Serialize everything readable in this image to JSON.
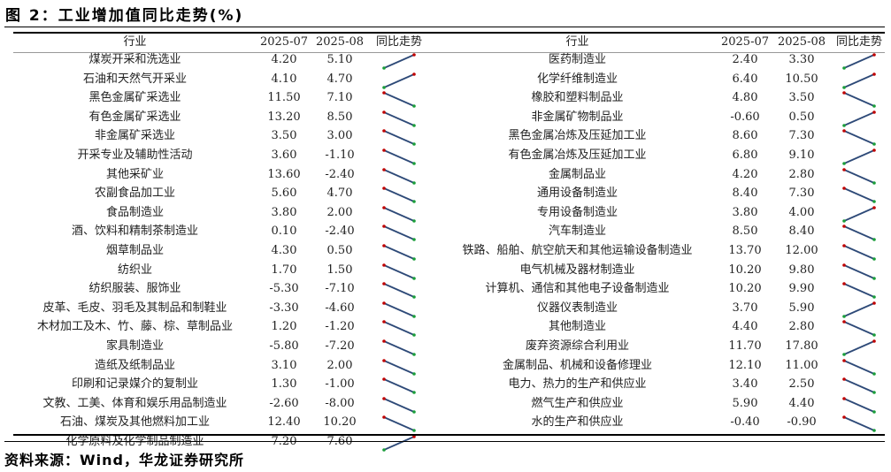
{
  "title": "图 2：工业增加值同比走势(%)",
  "footer": "资料来源：Wind，华龙证券研究所",
  "headers": {
    "industry": "行业",
    "col1": "2025-07",
    "col2": "2025-08",
    "trend": "同比走势"
  },
  "colors": {
    "line": "#2e4a78",
    "high": "#c00000",
    "low": "#1a9e3a"
  },
  "left": [
    {
      "name": "煤炭开采和洗选业",
      "v1": "4.20",
      "v2": "5.10"
    },
    {
      "name": "石油和天然气开采业",
      "v1": "4.10",
      "v2": "4.70"
    },
    {
      "name": "黑色金属矿采选业",
      "v1": "11.50",
      "v2": "7.10"
    },
    {
      "name": "有色金属矿采选业",
      "v1": "13.20",
      "v2": "8.50"
    },
    {
      "name": "非金属矿采选业",
      "v1": "3.50",
      "v2": "3.00"
    },
    {
      "name": "开采专业及辅助性活动",
      "v1": "3.60",
      "v2": "-1.10"
    },
    {
      "name": "其他采矿业",
      "v1": "13.60",
      "v2": "-2.40"
    },
    {
      "name": "农副食品加工业",
      "v1": "5.60",
      "v2": "4.70"
    },
    {
      "name": "食品制造业",
      "v1": "3.80",
      "v2": "2.00"
    },
    {
      "name": "酒、饮料和精制茶制造业",
      "v1": "0.10",
      "v2": "-2.40"
    },
    {
      "name": "烟草制品业",
      "v1": "4.30",
      "v2": "0.50"
    },
    {
      "name": "纺织业",
      "v1": "1.70",
      "v2": "1.50"
    },
    {
      "name": "纺织服装、服饰业",
      "v1": "-5.30",
      "v2": "-7.10"
    },
    {
      "name": "皮革、毛皮、羽毛及其制品和制鞋业",
      "v1": "-3.30",
      "v2": "-4.60"
    },
    {
      "name": "木材加工及木、竹、藤、棕、草制品业",
      "v1": "1.20",
      "v2": "-1.20"
    },
    {
      "name": "家具制造业",
      "v1": "-5.80",
      "v2": "-7.20"
    },
    {
      "name": "造纸及纸制品业",
      "v1": "3.10",
      "v2": "2.00"
    },
    {
      "name": "印刷和记录媒介的复制业",
      "v1": "1.30",
      "v2": "-1.00"
    },
    {
      "name": "文教、工美、体育和娱乐用品制造业",
      "v1": "-2.60",
      "v2": "-8.00"
    },
    {
      "name": "石油、煤炭及其他燃料加工业",
      "v1": "12.40",
      "v2": "10.20"
    },
    {
      "name": "化学原料及化学制品制造业",
      "v1": "7.20",
      "v2": "7.60"
    }
  ],
  "right": [
    {
      "name": "医药制造业",
      "v1": "2.40",
      "v2": "3.30"
    },
    {
      "name": "化学纤维制造业",
      "v1": "6.40",
      "v2": "10.50"
    },
    {
      "name": "橡胶和塑料制品业",
      "v1": "4.80",
      "v2": "3.50"
    },
    {
      "name": "非金属矿物制品业",
      "v1": "-0.60",
      "v2": "0.50"
    },
    {
      "name": "黑色金属冶炼及压延加工业",
      "v1": "8.60",
      "v2": "7.30"
    },
    {
      "name": "有色金属冶炼及压延加工业",
      "v1": "6.80",
      "v2": "9.10"
    },
    {
      "name": "金属制品业",
      "v1": "4.20",
      "v2": "2.80"
    },
    {
      "name": "通用设备制造业",
      "v1": "8.40",
      "v2": "7.30"
    },
    {
      "name": "专用设备制造业",
      "v1": "3.80",
      "v2": "4.00"
    },
    {
      "name": "汽车制造业",
      "v1": "8.50",
      "v2": "8.40"
    },
    {
      "name": "铁路、船舶、航空航天和其他运输设备制造业",
      "v1": "13.70",
      "v2": "12.00"
    },
    {
      "name": "电气机械及器材制造业",
      "v1": "10.20",
      "v2": "9.80"
    },
    {
      "name": "计算机、通信和其他电子设备制造业",
      "v1": "10.20",
      "v2": "9.90"
    },
    {
      "name": "仪器仪表制造业",
      "v1": "3.70",
      "v2": "5.90"
    },
    {
      "name": "其他制造业",
      "v1": "4.40",
      "v2": "2.80"
    },
    {
      "name": "废弃资源综合利用业",
      "v1": "11.70",
      "v2": "17.80"
    },
    {
      "name": "金属制品、机械和设备修理业",
      "v1": "12.10",
      "v2": "11.00"
    },
    {
      "name": "电力、热力的生产和供应业",
      "v1": "3.40",
      "v2": "2.50"
    },
    {
      "name": "燃气生产和供应业",
      "v1": "5.90",
      "v2": "4.40"
    },
    {
      "name": "水的生产和供应业",
      "v1": "-0.40",
      "v2": "-0.90"
    },
    {
      "name": "-",
      "v1": "-",
      "v2": "-",
      "trend": "-"
    }
  ]
}
